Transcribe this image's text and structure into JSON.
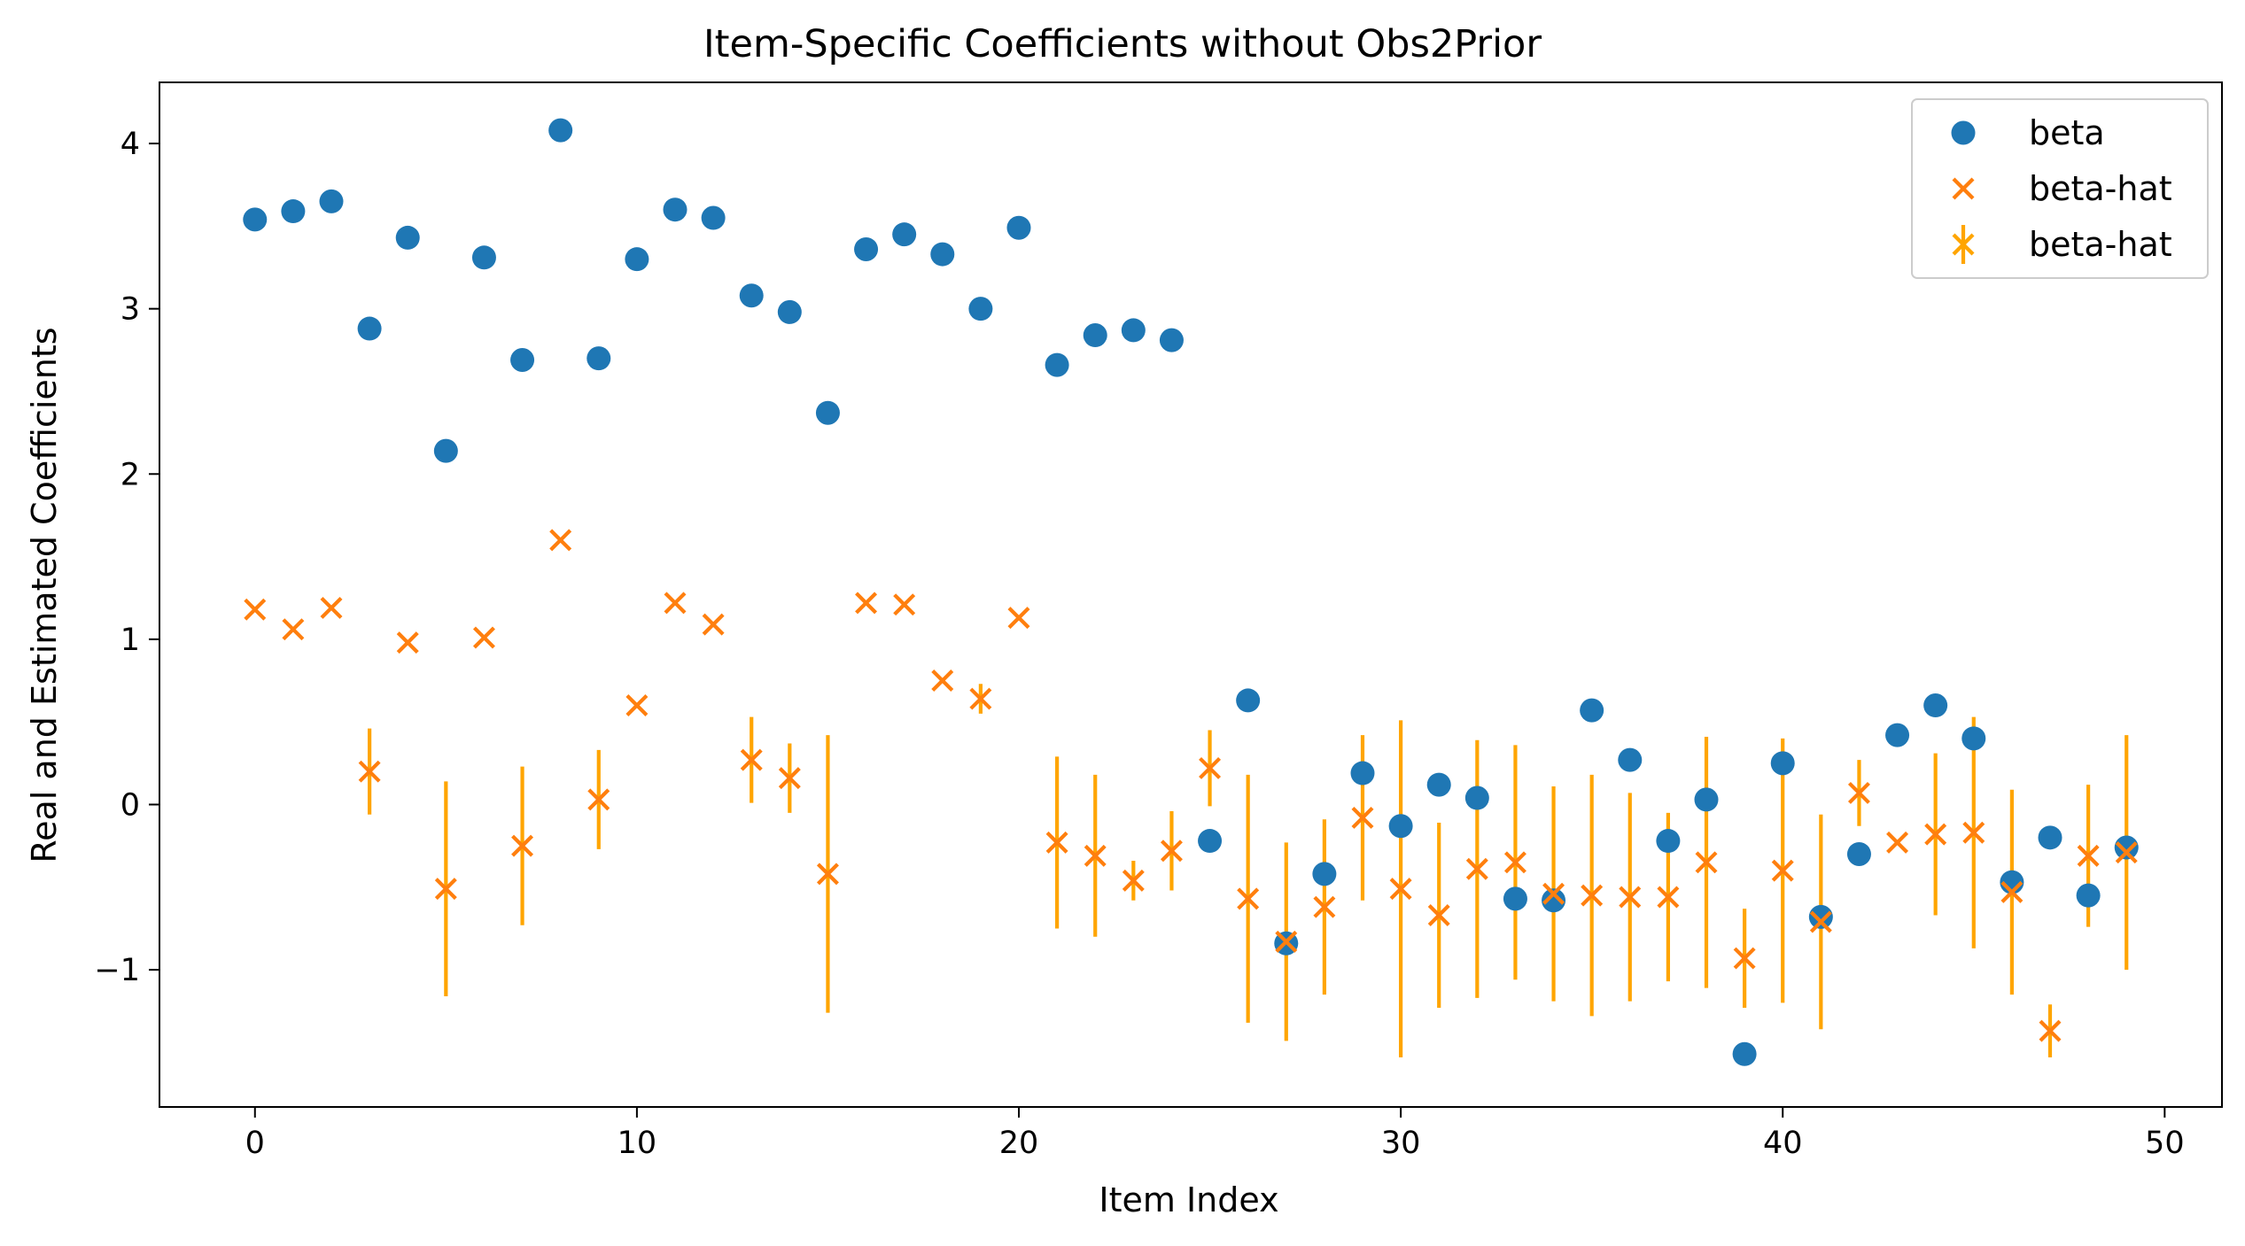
{
  "chart_data": {
    "type": "scatter",
    "title": "Item-Specific Coefficients without Obs2Prior",
    "xlabel": "Item Index",
    "ylabel": "Real and Estimated Coefficients",
    "xlim": [
      -2.5,
      51.5
    ],
    "ylim": [
      -1.83,
      4.37
    ],
    "xticks": [
      0,
      10,
      20,
      30,
      40,
      50
    ],
    "yticks": [
      -1,
      0,
      1,
      2,
      3,
      4
    ],
    "xtick_labels": [
      "0",
      "10",
      "20",
      "30",
      "40",
      "50"
    ],
    "ytick_labels": [
      "−1",
      "0",
      "1",
      "2",
      "3",
      "4"
    ],
    "grid": false,
    "legend_position": "top-right",
    "colors": {
      "beta": "#1f77b4",
      "beta_hat_marker": "#ff7f0e",
      "beta_hat_errorbar": "#ffa500"
    },
    "legend": [
      {
        "label": "beta",
        "marker": "circle",
        "color": "#1f77b4"
      },
      {
        "label": "beta-hat",
        "marker": "x",
        "color": "#ff7f0e"
      },
      {
        "label": "beta-hat",
        "marker": "errorbar",
        "color": "#ffa500"
      }
    ],
    "x": [
      0,
      1,
      2,
      3,
      4,
      5,
      6,
      7,
      8,
      9,
      10,
      11,
      12,
      13,
      14,
      15,
      16,
      17,
      18,
      19,
      20,
      21,
      22,
      23,
      24,
      25,
      26,
      27,
      28,
      29,
      30,
      31,
      32,
      33,
      34,
      35,
      36,
      37,
      38,
      39,
      40,
      41,
      42,
      43,
      44,
      45,
      46,
      47,
      48,
      49
    ],
    "series": [
      {
        "name": "beta",
        "marker": "circle",
        "values": [
          3.54,
          3.59,
          3.65,
          2.88,
          3.43,
          2.14,
          3.31,
          2.69,
          4.08,
          2.7,
          3.3,
          3.6,
          3.55,
          3.08,
          2.98,
          2.37,
          3.36,
          3.45,
          3.33,
          3.0,
          3.49,
          2.66,
          2.84,
          2.87,
          2.81,
          -0.22,
          0.63,
          -0.84,
          -0.42,
          0.19,
          -0.13,
          0.12,
          0.04,
          -0.57,
          -0.58,
          0.57,
          0.27,
          -0.22,
          0.03,
          -1.51,
          0.25,
          -0.68,
          -0.3,
          0.42,
          0.6,
          0.4,
          -0.47,
          -0.2,
          -0.55,
          -0.26
        ]
      },
      {
        "name": "beta-hat",
        "marker": "x",
        "values": [
          1.18,
          1.06,
          1.19,
          0.2,
          0.98,
          -0.51,
          1.01,
          -0.25,
          1.6,
          0.03,
          0.6,
          1.22,
          1.09,
          0.27,
          0.16,
          -0.42,
          1.22,
          1.21,
          0.75,
          0.64,
          1.13,
          -0.23,
          -0.31,
          -0.46,
          -0.28,
          0.22,
          -0.57,
          -0.83,
          -0.62,
          -0.08,
          -0.51,
          -0.67,
          -0.39,
          -0.35,
          -0.54,
          -0.55,
          -0.56,
          -0.56,
          -0.35,
          -0.93,
          -0.4,
          -0.71,
          0.07,
          -0.23,
          -0.18,
          -0.17,
          -0.53,
          -1.37,
          -0.31,
          -0.29
        ],
        "error": [
          0.0,
          0.0,
          0.0,
          0.26,
          0.0,
          0.65,
          0.0,
          0.48,
          0.0,
          0.3,
          0.0,
          0.0,
          0.0,
          0.26,
          0.21,
          0.84,
          0.0,
          0.0,
          0.0,
          0.09,
          0.0,
          0.52,
          0.49,
          0.12,
          0.24,
          0.23,
          0.75,
          0.6,
          0.53,
          0.5,
          1.02,
          0.56,
          0.78,
          0.71,
          0.65,
          0.73,
          0.63,
          0.51,
          0.76,
          0.3,
          0.8,
          0.65,
          0.2,
          0.0,
          0.49,
          0.7,
          0.62,
          0.16,
          0.43,
          0.71
        ]
      }
    ]
  }
}
